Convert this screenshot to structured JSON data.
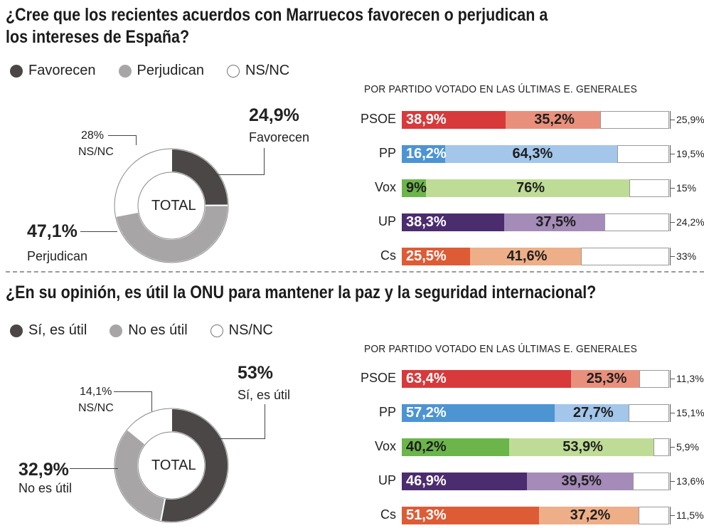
{
  "colors": {
    "dark": "#4a4746",
    "gray": "#a7a5a5",
    "white": "#ffffff",
    "psoe": [
      "#d8393b",
      "#e9907c"
    ],
    "pp": [
      "#4d94d3",
      "#a3c6ea"
    ],
    "vox": [
      "#6cb54b",
      "#bfdc96"
    ],
    "up": [
      "#4b2c6f",
      "#a48bb8"
    ],
    "cs": [
      "#dd5c36",
      "#eeae88"
    ]
  },
  "chart_data": [
    {
      "type": "pie",
      "title": "¿Cree que los recientes acuerdos con Marruecos favorecen o perjudican a los intereses de España?",
      "center_label": "TOTAL",
      "legend": [
        "Favorecen",
        "Perjudican",
        "NS/NC"
      ],
      "slices": [
        {
          "label": "Favorecen",
          "value": 24.9,
          "text": "24,9%"
        },
        {
          "label": "Perjudican",
          "value": 47.1,
          "text": "47,1%"
        },
        {
          "label": "NS/NC",
          "value": 28,
          "text": "28%"
        }
      ]
    },
    {
      "type": "bar",
      "title": "POR PARTIDO VOTADO EN LAS ÚLTIMAS E. GENERALES",
      "stacked": true,
      "categories": [
        "PSOE",
        "PP",
        "Vox",
        "UP",
        "Cs"
      ],
      "series": [
        {
          "name": "Favorecen",
          "values": [
            38.9,
            16.2,
            9,
            38.3,
            25.5
          ],
          "labels": [
            "38,9%",
            "16,2%",
            "9%",
            "38,3%",
            "25,5%"
          ]
        },
        {
          "name": "Perjudican",
          "values": [
            35.2,
            64.3,
            76,
            37.5,
            41.6
          ],
          "labels": [
            "35,2%",
            "64,3%",
            "76%",
            "37,5%",
            "41,6%"
          ]
        },
        {
          "name": "NS/NC",
          "values": [
            25.9,
            19.5,
            15,
            24.2,
            33
          ],
          "labels": [
            "25,9%",
            "19,5%",
            "15%",
            "24,2%",
            "33%"
          ]
        }
      ]
    },
    {
      "type": "pie",
      "title": "¿En su opinión, es útil la ONU para mantener la paz y la seguridad internacional?",
      "center_label": "TOTAL",
      "legend": [
        "Sí, es útil",
        "No es útil",
        "NS/NC"
      ],
      "slices": [
        {
          "label": "Sí, es útil",
          "value": 53,
          "text": "53%"
        },
        {
          "label": "No es útil",
          "value": 32.9,
          "text": "32,9%"
        },
        {
          "label": "NS/NC",
          "value": 14.1,
          "text": "14,1%"
        }
      ]
    },
    {
      "type": "bar",
      "title": "POR PARTIDO VOTADO EN LAS ÚLTIMAS E. GENERALES",
      "stacked": true,
      "categories": [
        "PSOE",
        "PP",
        "Vox",
        "UP",
        "Cs"
      ],
      "series": [
        {
          "name": "Sí, es útil",
          "values": [
            63.4,
            57.2,
            40.2,
            46.9,
            51.3
          ],
          "labels": [
            "63,4%",
            "57,2%",
            "40,2%",
            "46,9%",
            "51,3%"
          ]
        },
        {
          "name": "No es útil",
          "values": [
            25.3,
            27.7,
            53.9,
            39.5,
            37.2
          ],
          "labels": [
            "25,3%",
            "27,7%",
            "53,9%",
            "39,5%",
            "37,2%"
          ]
        },
        {
          "name": "NS/NC",
          "values": [
            11.3,
            15.1,
            5.9,
            13.6,
            11.5
          ],
          "labels": [
            "11,3%",
            "15,1%",
            "5,9%",
            "13,6%",
            "11,5%"
          ]
        }
      ]
    }
  ],
  "q1": {
    "question": "¿Cree que los recientes acuerdos con Marruecos favorecen o perjudican a los intereses de España?",
    "legend": [
      "Favorecen",
      "Perjudican",
      "NS/NC"
    ],
    "by_party": "POR PARTIDO VOTADO EN LAS ÚLTIMAS E. GENERALES",
    "total": "TOTAL",
    "call_fav_value": "24,9%",
    "call_fav_label": "Favorecen",
    "call_per_value": "47,1%",
    "call_per_label": "Perjudican",
    "call_ns_value": "28%",
    "call_ns_label": "NS/NC"
  },
  "q2": {
    "question": "¿En su opinión, es útil la ONU para mantener la paz y la seguridad internacional?",
    "legend": [
      "Sí, es útil",
      "No es útil",
      "NS/NC"
    ],
    "by_party": "POR PARTIDO VOTADO EN LAS ÚLTIMAS E. GENERALES",
    "total": "TOTAL",
    "call_yes_value": "53%",
    "call_yes_label": "Sí, es útil",
    "call_no_value": "32,9%",
    "call_no_label": "No es útil",
    "call_ns_value": "14,1%",
    "call_ns_label": "NS/NC"
  }
}
